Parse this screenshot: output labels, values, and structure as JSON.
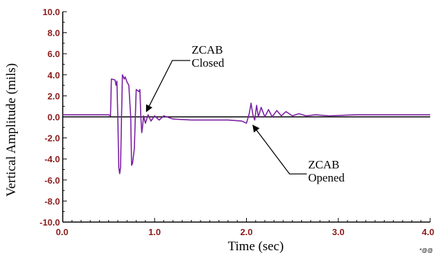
{
  "chart_data": {
    "type": "line",
    "xlabel": "Time (sec)",
    "ylabel": "Vertical Amplitude (mils)",
    "xlim": [
      0.0,
      4.0
    ],
    "ylim": [
      -10.0,
      10.0
    ],
    "x_ticks": [
      "0.0",
      "1.0",
      "2.0",
      "3.0",
      "4.0"
    ],
    "y_ticks": [
      "10.0",
      "8.0",
      "6.0",
      "4.0",
      "2.0",
      "0.0",
      "-2.0",
      "-4.0",
      "-6.0",
      "-8.0",
      "-10.0"
    ],
    "series": [
      {
        "color": "#7b1fa2",
        "points": [
          [
            0.0,
            0.2
          ],
          [
            0.5,
            0.2
          ],
          [
            0.52,
            0.1
          ],
          [
            0.53,
            3.6
          ],
          [
            0.57,
            3.5
          ],
          [
            0.58,
            3.0
          ],
          [
            0.59,
            3.4
          ],
          [
            0.6,
            0.0
          ],
          [
            0.61,
            -4.8
          ],
          [
            0.62,
            -5.4
          ],
          [
            0.63,
            -4.8
          ],
          [
            0.64,
            0.0
          ],
          [
            0.65,
            4.0
          ],
          [
            0.67,
            3.6
          ],
          [
            0.68,
            3.8
          ],
          [
            0.7,
            3.3
          ],
          [
            0.72,
            3.0
          ],
          [
            0.74,
            0.0
          ],
          [
            0.75,
            -4.6
          ],
          [
            0.76,
            -4.4
          ],
          [
            0.78,
            -3.0
          ],
          [
            0.79,
            0.0
          ],
          [
            0.8,
            2.6
          ],
          [
            0.83,
            2.4
          ],
          [
            0.84,
            2.6
          ],
          [
            0.85,
            0.0
          ],
          [
            0.86,
            -1.5
          ],
          [
            0.87,
            -0.9
          ],
          [
            0.88,
            0.1
          ],
          [
            0.9,
            -0.6
          ],
          [
            0.93,
            0.2
          ],
          [
            0.96,
            -0.4
          ],
          [
            1.0,
            0.1
          ],
          [
            1.05,
            -0.3
          ],
          [
            1.1,
            0.1
          ],
          [
            1.2,
            -0.2
          ],
          [
            1.4,
            -0.3
          ],
          [
            1.6,
            -0.3
          ],
          [
            1.8,
            -0.3
          ],
          [
            1.95,
            -0.4
          ],
          [
            2.0,
            -0.6
          ],
          [
            2.03,
            0.3
          ],
          [
            2.05,
            1.3
          ],
          [
            2.07,
            0.2
          ],
          [
            2.09,
            -0.3
          ],
          [
            2.11,
            1.1
          ],
          [
            2.13,
            0.0
          ],
          [
            2.16,
            0.9
          ],
          [
            2.2,
            0.0
          ],
          [
            2.24,
            0.7
          ],
          [
            2.28,
            0.0
          ],
          [
            2.33,
            0.6
          ],
          [
            2.38,
            0.1
          ],
          [
            2.43,
            0.5
          ],
          [
            2.5,
            0.1
          ],
          [
            2.57,
            0.3
          ],
          [
            2.65,
            0.1
          ],
          [
            2.75,
            0.2
          ],
          [
            2.9,
            0.1
          ],
          [
            3.2,
            0.2
          ],
          [
            3.6,
            0.2
          ],
          [
            4.0,
            0.2
          ]
        ]
      }
    ],
    "annotations": [
      {
        "lines": [
          "ZCAB",
          "Closed"
        ],
        "point": [
          0.91,
          0.5
        ]
      },
      {
        "lines": [
          "ZCAB",
          "Opened"
        ],
        "point": [
          2.07,
          -0.8
        ]
      }
    ],
    "corner_label": "*@@",
    "grid": false,
    "legend": "none"
  }
}
